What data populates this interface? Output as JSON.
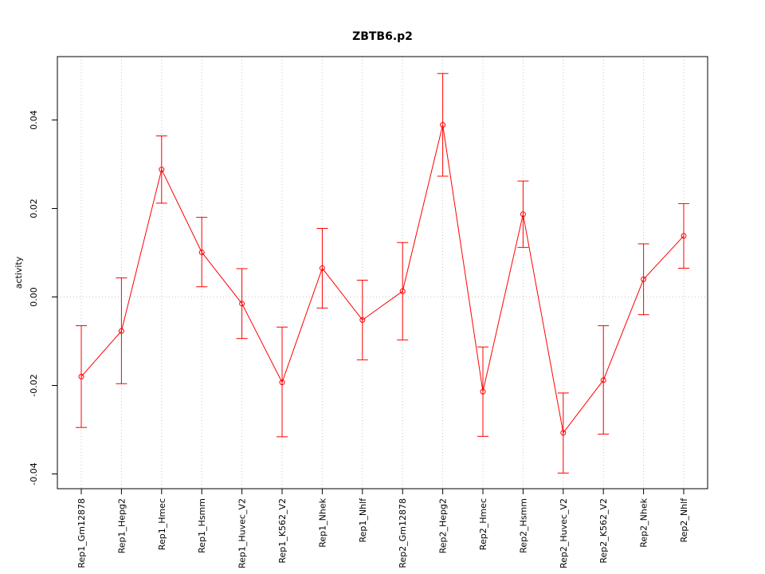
{
  "chart_data": {
    "type": "line",
    "title": "ZBTB6.p2",
    "xlabel": "",
    "ylabel": "activity",
    "ylim": [
      -0.044,
      0.054
    ],
    "yticks": [
      -0.04,
      -0.02,
      0.0,
      0.02,
      0.04
    ],
    "ytick_labels": [
      "-0.04",
      "-0.02",
      "0.00",
      "0.02",
      "0.04"
    ],
    "grid": true,
    "color": "#ff0000",
    "categories": [
      "Rep1_Gm12878",
      "Rep1_Hepg2",
      "Rep1_Hmec",
      "Rep1_Hsmm",
      "Rep1_Huvec_V2",
      "Rep1_K562_V2",
      "Rep1_Nhek",
      "Rep1_Nhlf",
      "Rep2_Gm12878",
      "Rep2_Hepg2",
      "Rep2_Hmec",
      "Rep2_Hsmm",
      "Rep2_Huvec_V2",
      "Rep2_K562_V2",
      "Rep2_Nhek",
      "Rep2_Nhlf"
    ],
    "series": [
      {
        "values": [
          -0.018,
          -0.0077,
          0.0288,
          0.0101,
          -0.0015,
          -0.0193,
          0.0065,
          -0.0052,
          0.0013,
          0.0389,
          -0.0214,
          0.0187,
          -0.0307,
          -0.0188,
          0.004,
          0.0138
        ],
        "upper": [
          -0.0065,
          0.0043,
          0.0364,
          0.018,
          0.0064,
          -0.0068,
          0.0155,
          0.0038,
          0.0123,
          0.0505,
          -0.0113,
          0.0262,
          -0.0217,
          -0.0065,
          0.012,
          0.0211
        ],
        "lower": [
          -0.0295,
          -0.0196,
          0.0212,
          0.0023,
          -0.0094,
          -0.0316,
          -0.0025,
          -0.0142,
          -0.0097,
          0.0273,
          -0.0315,
          0.0112,
          -0.0398,
          -0.031,
          -0.004,
          0.0065
        ]
      }
    ]
  }
}
